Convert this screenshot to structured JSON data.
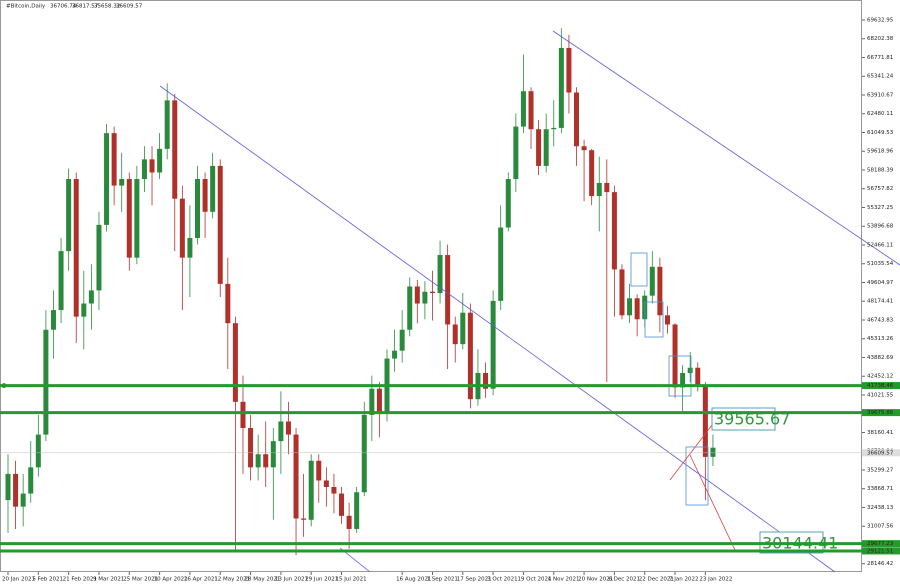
{
  "chart_data": {
    "type": "candlestick",
    "symbol": "#Bitcoin,Daily",
    "ohlc": [
      36706.74,
      36817.57,
      35658.32,
      36609.57
    ],
    "categories": [
      "20 Jan 2021",
      null,
      null,
      null,
      "5 Feb 2021",
      null,
      null,
      null,
      "21 Feb 2021",
      null,
      null,
      null,
      "9 Mar 2021",
      null,
      null,
      null,
      "25 Mar 2021",
      null,
      null,
      null,
      "10 Apr 2021",
      null,
      null,
      null,
      "26 Apr 2021",
      null,
      null,
      null,
      "12 May 2021",
      null,
      null,
      null,
      "28 May 2021",
      null,
      null,
      null,
      "13 Jun 2021",
      null,
      null,
      null,
      "29 Jun 2021",
      null,
      null,
      null,
      "15 Jul 2021",
      null,
      null,
      null,
      null,
      null,
      null,
      null,
      "16 Aug 2021",
      null,
      null,
      null,
      "1 Sep 2021",
      null,
      null,
      null,
      "17 Sep 2021",
      null,
      null,
      null,
      "3 Oct 2021",
      null,
      null,
      null,
      "19 Oct 2021",
      null,
      null,
      null,
      "4 Nov 2021",
      null,
      null,
      null,
      "20 Nov 2021",
      null,
      null,
      null,
      "6 Dec 2021",
      null,
      null,
      null,
      "22 Dec 2021",
      null,
      null,
      null,
      "7 Jan 2022",
      null,
      null,
      null,
      "23 Jan 2022",
      null
    ],
    "candles": [
      [
        33000,
        36500,
        30500,
        35000
      ],
      [
        35000,
        36000,
        30800,
        32500
      ],
      [
        32500,
        35000,
        31000,
        33500
      ],
      [
        33500,
        37500,
        32800,
        35500
      ],
      [
        35500,
        39500,
        34800,
        38000
      ],
      [
        38000,
        47500,
        37500,
        46000
      ],
      [
        46000,
        49000,
        43800,
        47500
      ],
      [
        47500,
        53000,
        46500,
        52000
      ],
      [
        52000,
        58300,
        50500,
        57500
      ],
      [
        57500,
        58000,
        45000,
        47000
      ],
      [
        47000,
        50500,
        44500,
        48000
      ],
      [
        48000,
        51000,
        46000,
        49000
      ],
      [
        49000,
        55000,
        47500,
        54000
      ],
      [
        54000,
        61700,
        53500,
        61000
      ],
      [
        61000,
        61500,
        55500,
        57000
      ],
      [
        57000,
        59500,
        55000,
        57500
      ],
      [
        57500,
        58000,
        50500,
        51500
      ],
      [
        51500,
        58500,
        51000,
        57500
      ],
      [
        57500,
        60000,
        56500,
        59000
      ],
      [
        59000,
        60000,
        55500,
        58000
      ],
      [
        58000,
        61000,
        57500,
        59800
      ],
      [
        59800,
        64800,
        59000,
        63500
      ],
      [
        63500,
        64000,
        52000,
        56000
      ],
      [
        56000,
        57000,
        47500,
        51500
      ],
      [
        51500,
        55500,
        48500,
        53000
      ],
      [
        53000,
        58500,
        52500,
        57500
      ],
      [
        57500,
        58000,
        53000,
        55000
      ],
      [
        55000,
        59500,
        54500,
        58500
      ],
      [
        58500,
        59000,
        48500,
        49500
      ],
      [
        49500,
        51500,
        43000,
        46500
      ],
      [
        46500,
        47000,
        29000,
        40500
      ],
      [
        40500,
        42500,
        35000,
        38500
      ],
      [
        38500,
        39500,
        34500,
        35500
      ],
      [
        35500,
        38000,
        34500,
        36500
      ],
      [
        36500,
        39000,
        34000,
        35500
      ],
      [
        35500,
        38500,
        31500,
        37500
      ],
      [
        37500,
        41300,
        35000,
        39000
      ],
      [
        39000,
        40500,
        36500,
        38000
      ],
      [
        38000,
        38500,
        28800,
        31600
      ],
      [
        31600,
        35000,
        30200,
        31500
      ],
      [
        31500,
        36500,
        31000,
        36000
      ],
      [
        36000,
        36500,
        32800,
        34500
      ],
      [
        34500,
        35500,
        32500,
        34000
      ],
      [
        34000,
        35000,
        32000,
        33500
      ],
      [
        33500,
        34000,
        31200,
        31800
      ],
      [
        31800,
        32800,
        29300,
        30800
      ],
      [
        30800,
        34000,
        30500,
        33600
      ],
      [
        33600,
        40500,
        33300,
        39500
      ],
      [
        39500,
        42500,
        37500,
        41500
      ],
      [
        41500,
        42000,
        37800,
        39700
      ],
      [
        39700,
        44500,
        39000,
        43800
      ],
      [
        43800,
        46000,
        42800,
        44400
      ],
      [
        44400,
        47500,
        43500,
        46000
      ],
      [
        46000,
        50000,
        45500,
        49300
      ],
      [
        49300,
        49800,
        46500,
        48000
      ],
      [
        48000,
        49700,
        46800,
        48900
      ],
      [
        48900,
        50500,
        46700,
        48800
      ],
      [
        48800,
        52800,
        48000,
        51700
      ],
      [
        51700,
        52500,
        43000,
        46400
      ],
      [
        46400,
        47000,
        43500,
        44900
      ],
      [
        44900,
        48800,
        44500,
        47300
      ],
      [
        47300,
        48000,
        40000,
        40700
      ],
      [
        40700,
        44500,
        40200,
        42700
      ],
      [
        42700,
        43500,
        40800,
        41500
      ],
      [
        41500,
        49000,
        41000,
        48200
      ],
      [
        48200,
        55500,
        47500,
        53800
      ],
      [
        53800,
        58000,
        53500,
        57500
      ],
      [
        57500,
        62500,
        56500,
        61500
      ],
      [
        61500,
        67000,
        61000,
        64200
      ],
      [
        64200,
        64500,
        59800,
        61300
      ],
      [
        61300,
        62000,
        57800,
        58500
      ],
      [
        58500,
        62500,
        58000,
        61300
      ],
      [
        61300,
        63500,
        60000,
        61400
      ],
      [
        61400,
        69000,
        61000,
        67500
      ],
      [
        67500,
        68500,
        62500,
        64100
      ],
      [
        64100,
        64500,
        58500,
        60000
      ],
      [
        60000,
        60500,
        55800,
        59700
      ],
      [
        59700,
        59800,
        55500,
        56200
      ],
      [
        56200,
        59200,
        53500,
        57200
      ],
      [
        57200,
        59000,
        42000,
        56500
      ],
      [
        56500,
        57000,
        47000,
        50600
      ],
      [
        50600,
        51000,
        46800,
        47100
      ],
      [
        47100,
        49500,
        46500,
        48400
      ],
      [
        48400,
        48700,
        45500,
        46800
      ],
      [
        46800,
        49000,
        46200,
        48600
      ],
      [
        48600,
        52000,
        48000,
        50800
      ],
      [
        50800,
        51500,
        45800,
        47100
      ],
      [
        47100,
        47800,
        45700,
        46400
      ],
      [
        46400,
        46500,
        40800,
        41600
      ],
      [
        41600,
        43300,
        39800,
        42700
      ],
      [
        42700,
        44300,
        42000,
        43100
      ],
      [
        43100,
        43500,
        41300,
        41700
      ],
      [
        41700,
        42000,
        33000,
        36300
      ],
      [
        36300,
        38000,
        35600,
        37000
      ]
    ],
    "up_color": "#2a8a3c",
    "down_color": "#b0302a",
    "ylim": [
      27515,
      71159
    ],
    "yticks": [
      69632.95,
      68202.38,
      66771.81,
      65341.24,
      63910.67,
      62480.11,
      61049.53,
      59618.96,
      58188.39,
      56757.82,
      55327.25,
      53896.68,
      52466.11,
      51035.54,
      49604.97,
      48174.41,
      46743.83,
      45313.26,
      43882.69,
      42452.12,
      41021.55,
      38160.41,
      36729.84,
      35299.27,
      33868.71,
      32438.13,
      31007.56,
      28146.42
    ],
    "levels": {
      "values": [
        41738.46,
        39675.86,
        29677.23,
        29121.51
      ],
      "color": "#249a2a"
    },
    "last_price": 36609.57,
    "annotations": [
      "39565.67",
      "30144.41"
    ]
  }
}
